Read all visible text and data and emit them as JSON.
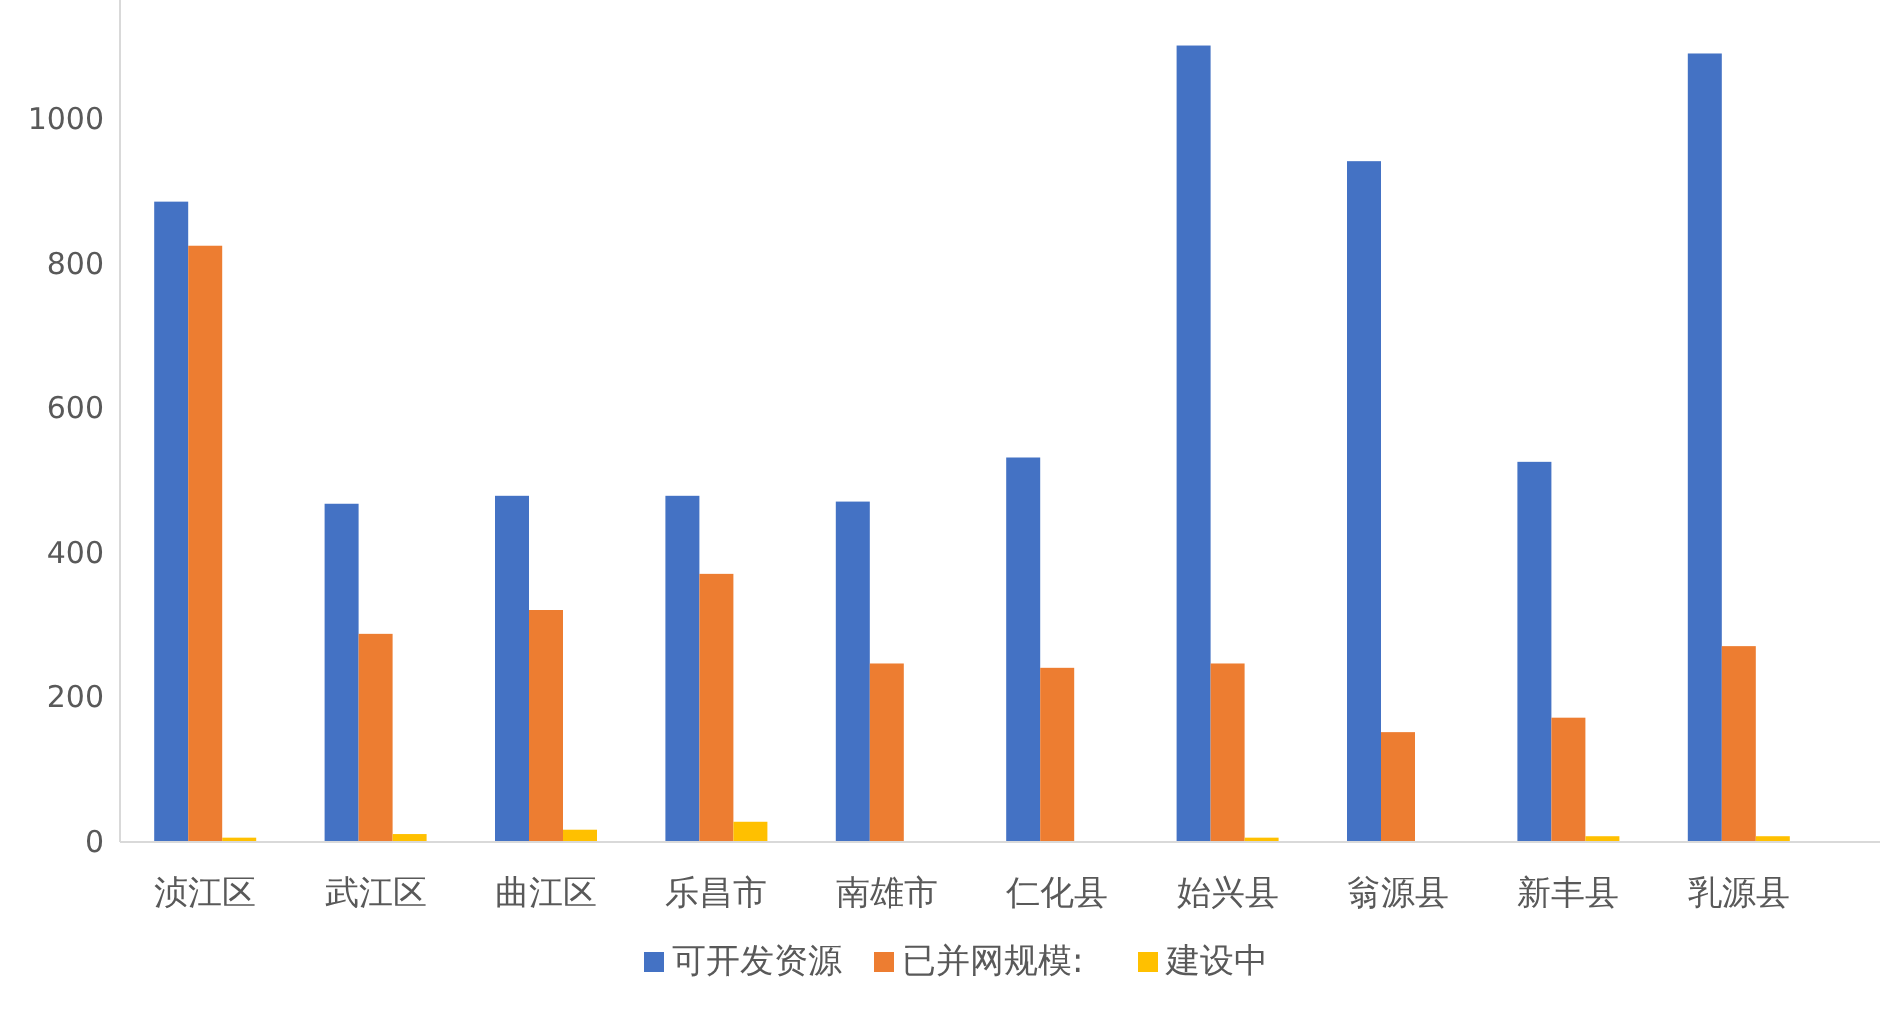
{
  "chart_data": {
    "type": "bar",
    "categories": [
      "浈江区",
      "武江区",
      "曲江区",
      "乐昌市",
      "南雄市",
      "仁化县",
      "始兴县",
      "翁源县",
      "新丰县",
      "乳源县"
    ],
    "series": [
      {
        "name": "可开发资源",
        "color": "#4472c4",
        "values": [
          886,
          468,
          479,
          479,
          471,
          532,
          1102,
          942,
          526,
          1091
        ]
      },
      {
        "name": "已并网规模:",
        "color": "#ed7d31",
        "values": [
          825,
          288,
          321,
          371,
          247,
          241,
          247,
          152,
          172,
          271
        ]
      },
      {
        "name": "建设中",
        "color": "#ffc000",
        "values": [
          6,
          11,
          17,
          28,
          null,
          null,
          6,
          null,
          8,
          8
        ]
      }
    ],
    "ylim": [
      0,
      1165
    ],
    "yticks": [
      0,
      200,
      400,
      600,
      800,
      1000
    ],
    "legend": "bottom"
  }
}
